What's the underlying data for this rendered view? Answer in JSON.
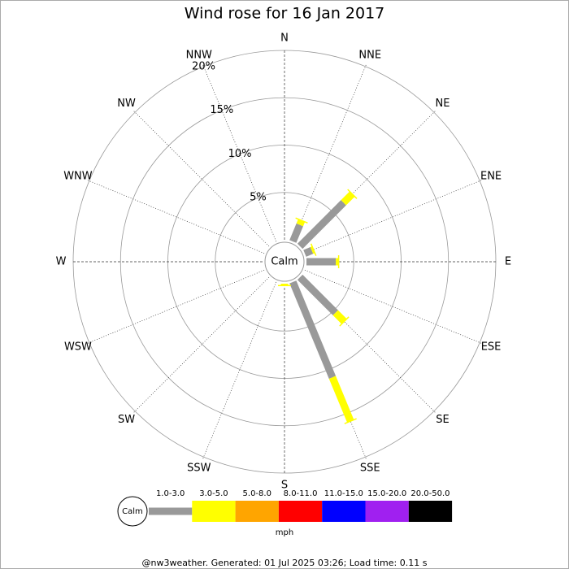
{
  "chart_data": {
    "type": "windrose",
    "title": "Wind rose for 16 Jan 2017",
    "directions": [
      "N",
      "NNE",
      "NE",
      "ENE",
      "E",
      "ESE",
      "SE",
      "SSE",
      "S",
      "SSW",
      "SW",
      "WSW",
      "W",
      "WNW",
      "NW",
      "NNW"
    ],
    "center_label": "Calm",
    "rlim": [
      0,
      20
    ],
    "rticks": [
      {
        "value": 5,
        "label": "5%"
      },
      {
        "value": 10,
        "label": "10%"
      },
      {
        "value": 15,
        "label": "15%"
      },
      {
        "value": 20,
        "label": "20%"
      }
    ],
    "unit": "mph",
    "series": [
      {
        "name": "1.0-3.0",
        "color": "#999999",
        "values": [
          0,
          1.9,
          6.5,
          0.8,
          3.1,
          0,
          5.3,
          10.9,
          0,
          0,
          0,
          0,
          0,
          0,
          0,
          0
        ]
      },
      {
        "name": "3.0-5.0",
        "color": "#ffff00",
        "values": [
          0,
          0.5,
          1.3,
          0.2,
          0.3,
          0,
          1.3,
          5.0,
          0.2,
          0,
          0,
          0,
          0,
          0,
          0,
          0
        ]
      },
      {
        "name": "5.0-8.0",
        "color": "#ffa500",
        "values": [
          0,
          0,
          0,
          0,
          0,
          0,
          0,
          0,
          0,
          0,
          0,
          0,
          0,
          0,
          0,
          0
        ]
      },
      {
        "name": "8.0-11.0",
        "color": "#ff0000",
        "values": [
          0,
          0,
          0,
          0,
          0,
          0,
          0,
          0,
          0,
          0,
          0,
          0,
          0,
          0,
          0,
          0
        ]
      },
      {
        "name": "11.0-15.0",
        "color": "#0000ff",
        "values": [
          0,
          0,
          0,
          0,
          0,
          0,
          0,
          0,
          0,
          0,
          0,
          0,
          0,
          0,
          0,
          0
        ]
      },
      {
        "name": "15.0-20.0",
        "color": "#a020f0",
        "values": [
          0,
          0,
          0,
          0,
          0,
          0,
          0,
          0,
          0,
          0,
          0,
          0,
          0,
          0,
          0,
          0
        ]
      },
      {
        "name": "20.0-50.0",
        "color": "#000000",
        "values": [
          0,
          0,
          0,
          0,
          0,
          0,
          0,
          0,
          0,
          0,
          0,
          0,
          0,
          0,
          0,
          0
        ]
      }
    ],
    "footer": "@nw3weather. Generated: 01 Jul 2025 03:26; Load time: 0.11 s"
  }
}
